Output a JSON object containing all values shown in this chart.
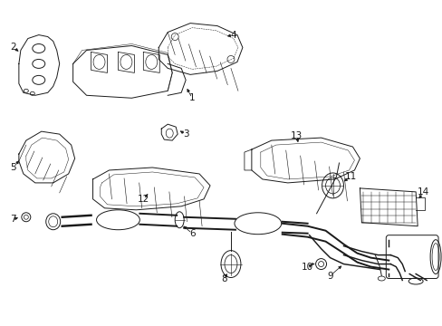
{
  "bg_color": "#ffffff",
  "line_color": "#1a1a1a",
  "fig_width": 4.89,
  "fig_height": 3.6,
  "dpi": 100,
  "lw": 0.7
}
